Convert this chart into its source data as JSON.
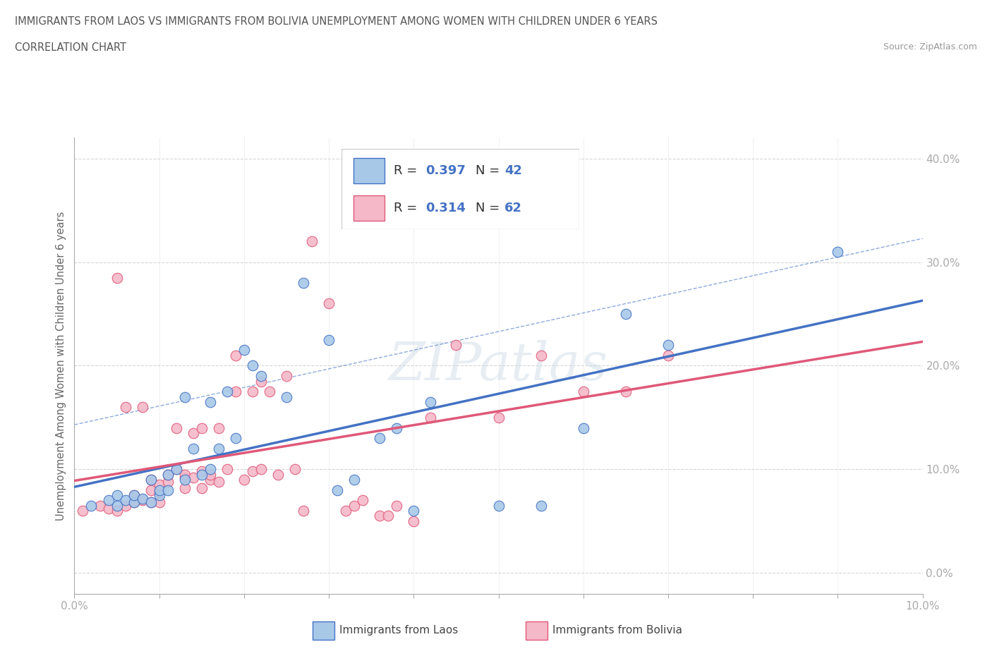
{
  "title_line1": "IMMIGRANTS FROM LAOS VS IMMIGRANTS FROM BOLIVIA UNEMPLOYMENT AMONG WOMEN WITH CHILDREN UNDER 6 YEARS",
  "title_line2": "CORRELATION CHART",
  "source_text": "Source: ZipAtlas.com",
  "ylabel": "Unemployment Among Women with Children Under 6 years",
  "xlim": [
    0.0,
    0.1
  ],
  "ylim": [
    -0.02,
    0.42
  ],
  "xticks": [
    0.0,
    0.01,
    0.02,
    0.03,
    0.04,
    0.05,
    0.06,
    0.07,
    0.08,
    0.09,
    0.1
  ],
  "yticks": [
    0.0,
    0.1,
    0.2,
    0.3,
    0.4
  ],
  "ytick_labels_right": [
    "0.0%",
    "10.0%",
    "20.0%",
    "30.0%",
    "40.0%"
  ],
  "xtick_labels": [
    "0.0%",
    "",
    "",
    "",
    "",
    "",
    "",
    "",
    "",
    "",
    "10.0%"
  ],
  "color_laos": "#a8c8e8",
  "color_bolivia": "#f5b8c8",
  "line_color_laos": "#4472c4",
  "line_color_bolivia": "#e05878",
  "R_laos": 0.397,
  "N_laos": 42,
  "R_bolivia": 0.314,
  "N_bolivia": 62,
  "laos_x": [
    0.002,
    0.004,
    0.005,
    0.005,
    0.006,
    0.007,
    0.007,
    0.008,
    0.009,
    0.009,
    0.01,
    0.01,
    0.011,
    0.011,
    0.012,
    0.013,
    0.013,
    0.014,
    0.015,
    0.016,
    0.016,
    0.017,
    0.018,
    0.019,
    0.02,
    0.021,
    0.022,
    0.025,
    0.027,
    0.03,
    0.031,
    0.033,
    0.036,
    0.038,
    0.04,
    0.042,
    0.05,
    0.055,
    0.06,
    0.065,
    0.07,
    0.09
  ],
  "laos_y": [
    0.065,
    0.07,
    0.065,
    0.075,
    0.07,
    0.068,
    0.075,
    0.072,
    0.068,
    0.09,
    0.075,
    0.08,
    0.08,
    0.095,
    0.1,
    0.09,
    0.17,
    0.12,
    0.095,
    0.1,
    0.165,
    0.12,
    0.175,
    0.13,
    0.215,
    0.2,
    0.19,
    0.17,
    0.28,
    0.225,
    0.08,
    0.09,
    0.13,
    0.14,
    0.06,
    0.165,
    0.065,
    0.065,
    0.14,
    0.25,
    0.22,
    0.31
  ],
  "bolivia_x": [
    0.001,
    0.003,
    0.004,
    0.005,
    0.005,
    0.006,
    0.006,
    0.007,
    0.007,
    0.008,
    0.008,
    0.009,
    0.009,
    0.009,
    0.01,
    0.01,
    0.01,
    0.011,
    0.011,
    0.012,
    0.012,
    0.013,
    0.013,
    0.013,
    0.014,
    0.014,
    0.015,
    0.015,
    0.015,
    0.016,
    0.016,
    0.017,
    0.017,
    0.018,
    0.019,
    0.019,
    0.02,
    0.021,
    0.021,
    0.022,
    0.022,
    0.023,
    0.024,
    0.025,
    0.026,
    0.027,
    0.028,
    0.03,
    0.032,
    0.033,
    0.034,
    0.036,
    0.037,
    0.038,
    0.04,
    0.042,
    0.045,
    0.05,
    0.055,
    0.06,
    0.065,
    0.07
  ],
  "bolivia_y": [
    0.06,
    0.065,
    0.062,
    0.06,
    0.285,
    0.065,
    0.16,
    0.068,
    0.075,
    0.07,
    0.16,
    0.068,
    0.08,
    0.09,
    0.068,
    0.078,
    0.085,
    0.088,
    0.095,
    0.1,
    0.14,
    0.082,
    0.092,
    0.095,
    0.092,
    0.135,
    0.082,
    0.098,
    0.14,
    0.09,
    0.095,
    0.088,
    0.14,
    0.1,
    0.21,
    0.175,
    0.09,
    0.098,
    0.175,
    0.185,
    0.1,
    0.175,
    0.095,
    0.19,
    0.1,
    0.06,
    0.32,
    0.26,
    0.06,
    0.065,
    0.07,
    0.055,
    0.055,
    0.065,
    0.05,
    0.15,
    0.22,
    0.15,
    0.21,
    0.175,
    0.175,
    0.21
  ],
  "watermark": "ZIPatlas"
}
